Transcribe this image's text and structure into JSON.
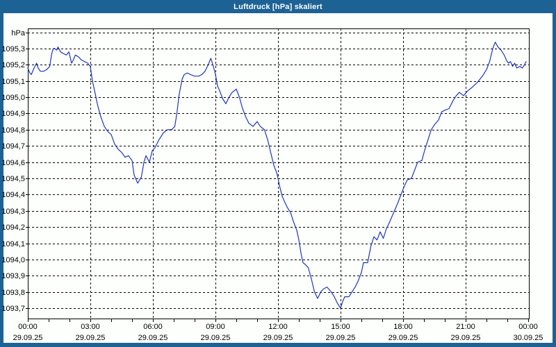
{
  "window": {
    "title": "Luftdruck [hPa] skaliert"
  },
  "colors": {
    "frame_blue": "#1d6295",
    "title_text": "#ffffff",
    "panel_bg": "#fcfffc",
    "plot_bg": "#fcfffc",
    "line_blue": "#2233bb",
    "grid_black": "#000000",
    "text_black": "#000000"
  },
  "chart_data": {
    "type": "line",
    "title": "Luftdruck [hPa] skaliert",
    "ylabel": "hPa",
    "unit_label": "hPa",
    "xlabel": "",
    "grid": "dashed",
    "legend": "none",
    "xlim_hours": [
      0,
      24
    ],
    "ylim": [
      1093.63,
      1095.42
    ],
    "y_ticks": [
      {
        "v": 1095.4,
        "label": "hPa",
        "is_unit": true
      },
      {
        "v": 1095.3,
        "label": "1095,3"
      },
      {
        "v": 1095.2,
        "label": "1095,2"
      },
      {
        "v": 1095.1,
        "label": "1095,1"
      },
      {
        "v": 1095.0,
        "label": "1095,0"
      },
      {
        "v": 1094.9,
        "label": "1094,9"
      },
      {
        "v": 1094.8,
        "label": "1094,8"
      },
      {
        "v": 1094.7,
        "label": "1094,7"
      },
      {
        "v": 1094.6,
        "label": "1094,6"
      },
      {
        "v": 1094.5,
        "label": "1094,5"
      },
      {
        "v": 1094.4,
        "label": "1094,4"
      },
      {
        "v": 1094.3,
        "label": "1094,3"
      },
      {
        "v": 1094.2,
        "label": "1094,2"
      },
      {
        "v": 1094.1,
        "label": "1094,1"
      },
      {
        "v": 1094.0,
        "label": "1094,0"
      },
      {
        "v": 1093.9,
        "label": "1093,9"
      },
      {
        "v": 1093.8,
        "label": "1093,8"
      },
      {
        "v": 1093.7,
        "label": "1093,7"
      }
    ],
    "x_ticks": [
      {
        "h": 0,
        "time": "00:00",
        "date": "29.09.25"
      },
      {
        "h": 3,
        "time": "03:00",
        "date": "29.09.25"
      },
      {
        "h": 6,
        "time": "06:00",
        "date": "29.09.25"
      },
      {
        "h": 9,
        "time": "09:00",
        "date": "29.09.25"
      },
      {
        "h": 12,
        "time": "12:00",
        "date": "29.09.25"
      },
      {
        "h": 15,
        "time": "15:00",
        "date": "29.09.25"
      },
      {
        "h": 18,
        "time": "18:00",
        "date": "29.09.25"
      },
      {
        "h": 21,
        "time": "21:00",
        "date": "29.09.25"
      },
      {
        "h": 24,
        "time": "00:00",
        "date": "30.09.25"
      }
    ],
    "minor_tick_every_hours": 1,
    "series": [
      {
        "name": "Luftdruck",
        "color": "#2233bb",
        "points": [
          [
            0.0,
            1095.18
          ],
          [
            0.1,
            1095.15
          ],
          [
            0.17,
            1095.14
          ],
          [
            0.3,
            1095.18
          ],
          [
            0.42,
            1095.21
          ],
          [
            0.5,
            1095.18
          ],
          [
            0.6,
            1095.16
          ],
          [
            0.75,
            1095.16
          ],
          [
            0.9,
            1095.17
          ],
          [
            1.05,
            1095.19
          ],
          [
            1.15,
            1095.27
          ],
          [
            1.22,
            1095.3
          ],
          [
            1.3,
            1095.3
          ],
          [
            1.38,
            1095.29
          ],
          [
            1.45,
            1095.31
          ],
          [
            1.57,
            1095.28
          ],
          [
            1.7,
            1095.27
          ],
          [
            1.85,
            1095.26
          ],
          [
            1.97,
            1095.28
          ],
          [
            2.1,
            1095.21
          ],
          [
            2.18,
            1095.23
          ],
          [
            2.28,
            1095.26
          ],
          [
            2.42,
            1095.25
          ],
          [
            2.57,
            1095.23
          ],
          [
            2.72,
            1095.22
          ],
          [
            2.87,
            1095.21
          ],
          [
            3.0,
            1095.19
          ],
          [
            3.1,
            1095.1
          ],
          [
            3.22,
            1095.03
          ],
          [
            3.35,
            1094.95
          ],
          [
            3.5,
            1094.88
          ],
          [
            3.67,
            1094.82
          ],
          [
            3.83,
            1094.79
          ],
          [
            4.0,
            1094.77
          ],
          [
            4.17,
            1094.71
          ],
          [
            4.33,
            1094.68
          ],
          [
            4.5,
            1094.66
          ],
          [
            4.67,
            1094.63
          ],
          [
            4.83,
            1094.64
          ],
          [
            5.0,
            1094.61
          ],
          [
            5.1,
            1094.52
          ],
          [
            5.27,
            1094.47
          ],
          [
            5.45,
            1094.51
          ],
          [
            5.57,
            1094.6
          ],
          [
            5.67,
            1094.64
          ],
          [
            5.83,
            1094.6
          ],
          [
            5.97,
            1094.67
          ],
          [
            6.1,
            1094.69
          ],
          [
            6.3,
            1094.74
          ],
          [
            6.5,
            1094.78
          ],
          [
            6.7,
            1094.8
          ],
          [
            6.9,
            1094.8
          ],
          [
            7.05,
            1094.82
          ],
          [
            7.15,
            1094.9
          ],
          [
            7.25,
            1095.01
          ],
          [
            7.4,
            1095.11
          ],
          [
            7.5,
            1095.14
          ],
          [
            7.65,
            1095.15
          ],
          [
            7.8,
            1095.14
          ],
          [
            8.0,
            1095.13
          ],
          [
            8.2,
            1095.13
          ],
          [
            8.35,
            1095.14
          ],
          [
            8.5,
            1095.16
          ],
          [
            8.65,
            1095.2
          ],
          [
            8.78,
            1095.24
          ],
          [
            8.9,
            1095.19
          ],
          [
            9.0,
            1095.14
          ],
          [
            9.1,
            1095.07
          ],
          [
            9.2,
            1095.04
          ],
          [
            9.35,
            1094.99
          ],
          [
            9.5,
            1094.96
          ],
          [
            9.65,
            1095.0
          ],
          [
            9.8,
            1095.03
          ],
          [
            10.0,
            1095.05
          ],
          [
            10.15,
            1095.0
          ],
          [
            10.3,
            1094.93
          ],
          [
            10.45,
            1094.88
          ],
          [
            10.6,
            1094.84
          ],
          [
            10.8,
            1094.82
          ],
          [
            11.0,
            1094.85
          ],
          [
            11.15,
            1094.82
          ],
          [
            11.35,
            1094.8
          ],
          [
            11.5,
            1094.74
          ],
          [
            11.65,
            1094.66
          ],
          [
            11.8,
            1094.58
          ],
          [
            11.95,
            1094.53
          ],
          [
            12.1,
            1094.44
          ],
          [
            12.2,
            1094.39
          ],
          [
            12.3,
            1094.36
          ],
          [
            12.45,
            1094.32
          ],
          [
            12.6,
            1094.29
          ],
          [
            12.75,
            1094.23
          ],
          [
            12.9,
            1094.18
          ],
          [
            13.0,
            1094.12
          ],
          [
            13.1,
            1094.04
          ],
          [
            13.2,
            1093.98
          ],
          [
            13.3,
            1093.97
          ],
          [
            13.45,
            1093.95
          ],
          [
            13.6,
            1093.88
          ],
          [
            13.75,
            1093.8
          ],
          [
            13.9,
            1093.76
          ],
          [
            14.05,
            1093.8
          ],
          [
            14.2,
            1093.82
          ],
          [
            14.35,
            1093.83
          ],
          [
            14.55,
            1093.8
          ],
          [
            14.7,
            1093.77
          ],
          [
            14.85,
            1093.73
          ],
          [
            15.0,
            1093.7
          ],
          [
            15.1,
            1093.74
          ],
          [
            15.2,
            1093.77
          ],
          [
            15.4,
            1093.77
          ],
          [
            15.55,
            1093.8
          ],
          [
            15.7,
            1093.83
          ],
          [
            15.85,
            1093.87
          ],
          [
            16.0,
            1093.92
          ],
          [
            16.1,
            1093.98
          ],
          [
            16.3,
            1093.98
          ],
          [
            16.45,
            1094.08
          ],
          [
            16.6,
            1094.14
          ],
          [
            16.75,
            1094.12
          ],
          [
            16.9,
            1094.17
          ],
          [
            17.05,
            1094.13
          ],
          [
            17.2,
            1094.19
          ],
          [
            17.35,
            1094.23
          ],
          [
            17.55,
            1094.29
          ],
          [
            17.75,
            1094.35
          ],
          [
            17.9,
            1094.4
          ],
          [
            18.05,
            1094.45
          ],
          [
            18.2,
            1094.49
          ],
          [
            18.4,
            1094.5
          ],
          [
            18.55,
            1094.55
          ],
          [
            18.7,
            1094.6
          ],
          [
            18.9,
            1094.61
          ],
          [
            19.05,
            1094.68
          ],
          [
            19.2,
            1094.74
          ],
          [
            19.35,
            1094.8
          ],
          [
            19.5,
            1094.83
          ],
          [
            19.7,
            1094.86
          ],
          [
            19.85,
            1094.91
          ],
          [
            20.0,
            1094.92
          ],
          [
            20.2,
            1094.93
          ],
          [
            20.4,
            1094.98
          ],
          [
            20.55,
            1095.01
          ],
          [
            20.7,
            1095.03
          ],
          [
            20.9,
            1095.01
          ],
          [
            21.1,
            1095.04
          ],
          [
            21.3,
            1095.06
          ],
          [
            21.55,
            1095.09
          ],
          [
            21.8,
            1095.13
          ],
          [
            22.0,
            1095.17
          ],
          [
            22.15,
            1095.22
          ],
          [
            22.3,
            1095.3
          ],
          [
            22.42,
            1095.34
          ],
          [
            22.55,
            1095.31
          ],
          [
            22.7,
            1095.29
          ],
          [
            22.85,
            1095.26
          ],
          [
            22.95,
            1095.23
          ],
          [
            23.05,
            1095.21
          ],
          [
            23.15,
            1095.22
          ],
          [
            23.25,
            1095.19
          ],
          [
            23.35,
            1095.21
          ],
          [
            23.45,
            1095.18
          ],
          [
            23.6,
            1095.19
          ],
          [
            23.72,
            1095.18
          ],
          [
            23.82,
            1095.2
          ],
          [
            23.9,
            1095.22
          ]
        ]
      }
    ]
  }
}
